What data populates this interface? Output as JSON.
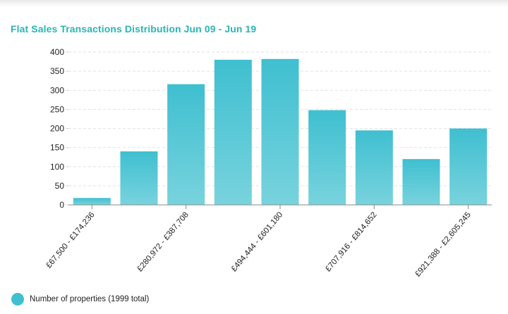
{
  "title": "Flat Sales Transactions Distribution Jun 09 - Jun 19",
  "legend": {
    "label": "Number of properties (1999 total)"
  },
  "colors": {
    "bar": "#3fbfd0",
    "title": "#2cb5b3",
    "grid": "#e2e2e2",
    "axis": "#888888"
  },
  "chart_data": {
    "type": "bar",
    "title": "Flat Sales Transactions Distribution Jun 09 - Jun 19",
    "xlabel": "",
    "ylabel": "",
    "ylim": [
      0,
      400
    ],
    "yticks": [
      0,
      50,
      100,
      150,
      200,
      250,
      300,
      350,
      400
    ],
    "categories": [
      "",
      "",
      "",
      "",
      "",
      "",
      "",
      "",
      ""
    ],
    "tick_labels": [
      {
        "index": 0,
        "label": "£67,500 - £174,236"
      },
      {
        "index": 2,
        "label": "£280,972 - £387,708"
      },
      {
        "index": 4,
        "label": "£494,444 - £601,180"
      },
      {
        "index": 6,
        "label": "£707,916 - £814,652"
      },
      {
        "index": 8,
        "label": "£921,388 - £2,605,245"
      }
    ],
    "series": [
      {
        "name": "Number of properties (1999 total)",
        "values": [
          18,
          140,
          316,
          380,
          382,
          248,
          195,
          120,
          200
        ]
      }
    ]
  }
}
